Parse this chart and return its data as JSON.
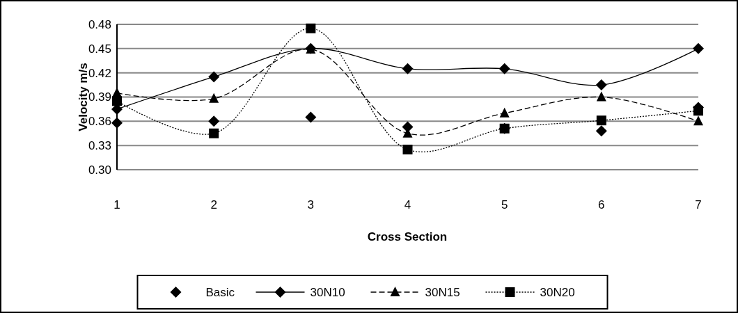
{
  "chart_data": {
    "type": "line",
    "xlabel": "Cross Section",
    "ylabel": "Velocity m/s",
    "x": [
      1,
      2,
      3,
      4,
      5,
      6,
      7
    ],
    "xlim": [
      1,
      7
    ],
    "xticks": [
      1,
      2,
      3,
      4,
      5,
      6,
      7
    ],
    "ylim": [
      0.3,
      0.48
    ],
    "yticks": [
      {
        "value": 0.3,
        "label": "0.30"
      },
      0.33,
      0.36,
      0.39,
      0.42,
      0.45,
      0.48
    ],
    "grid": "y",
    "legend": "bottom",
    "series": [
      {
        "name": "Basic",
        "type": "scatter",
        "marker": "diamond",
        "color": "#000000",
        "values": [
          0.358,
          0.36,
          0.365,
          0.353,
          0.351,
          0.348,
          0.377
        ]
      },
      {
        "name": "30N10",
        "marker": "diamond",
        "line_style": "solid",
        "color": "#000000",
        "values": [
          0.375,
          0.415,
          0.45,
          0.425,
          0.425,
          0.405,
          0.45
        ]
      },
      {
        "name": "30N15",
        "marker": "triangle",
        "line_style": "dashed",
        "color": "#000000",
        "values": [
          0.395,
          0.388,
          0.449,
          0.345,
          0.37,
          0.39,
          0.36
        ]
      },
      {
        "name": "30N20",
        "marker": "square",
        "line_style": "dotted",
        "color": "#000000",
        "values": [
          0.385,
          0.345,
          0.475,
          0.325,
          0.351,
          0.361,
          0.373
        ]
      }
    ]
  }
}
